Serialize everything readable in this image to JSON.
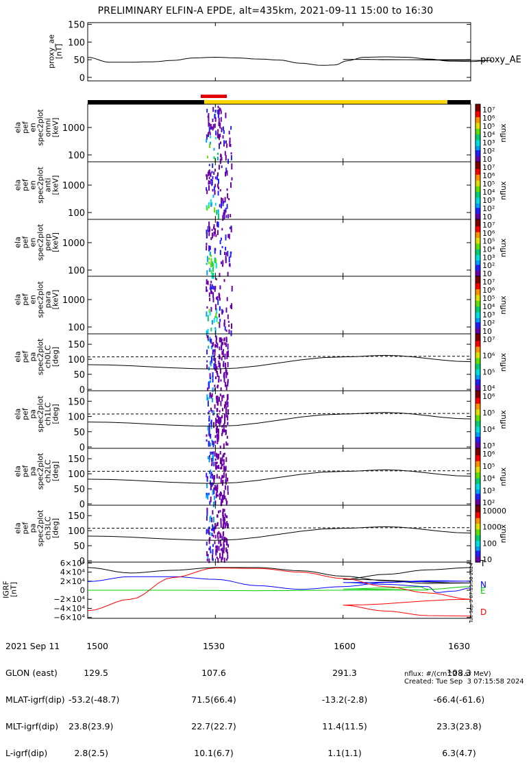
{
  "title": "PRELIMINARY ELFIN-A EPDE, alt=435km, 2021-09-11 15:00 to 16:30",
  "chart_data": [
    {
      "type": "line",
      "panel": "proxy_ae",
      "ylabel": [
        "proxy_ae",
        "[nT]"
      ],
      "yticks": [
        "150",
        "100",
        "50",
        "0"
      ],
      "ylim": [
        -10,
        155
      ],
      "series": [
        {
          "name": "proxy_AE",
          "x": [
            1500,
            1505,
            1510,
            1515,
            1520,
            1525,
            1530,
            1535,
            1540,
            1545,
            1550,
            1555,
            1558,
            1561,
            1565,
            1570,
            1575,
            1580,
            1585,
            1590,
            1595,
            1600,
            1605,
            1610,
            1615,
            1620,
            1625,
            1630
          ],
          "values": [
            57,
            43,
            43,
            44,
            48,
            55,
            57,
            55,
            52,
            49,
            40,
            34,
            35,
            47,
            57,
            58,
            57,
            52,
            46,
            45,
            48,
            51,
            51,
            50,
            50,
            50,
            50,
            50
          ]
        }
      ]
    },
    {
      "type": "heatmap",
      "panel": "energy spectrograms",
      "panels": [
        {
          "ylabel": [
            "ela",
            "pef",
            "en",
            "spec2plot",
            "omni",
            "[keV]"
          ],
          "yticks": [
            "1000",
            "100"
          ]
        },
        {
          "ylabel": [
            "ela",
            "pef",
            "en",
            "spec2plot",
            "anti",
            "[keV]"
          ],
          "yticks": [
            "1000",
            "100"
          ]
        },
        {
          "ylabel": [
            "ela",
            "pef",
            "en",
            "spec2plot",
            "perp",
            "[keV]"
          ],
          "yticks": [
            "1000",
            "100"
          ]
        },
        {
          "ylabel": [
            "ela",
            "pef",
            "en",
            "spec2plot",
            "para",
            "[keV]"
          ],
          "yticks": [
            "1000",
            "100"
          ]
        }
      ],
      "colorbar": {
        "label": "nflux",
        "range": [
          10,
          10000000
        ],
        "ticks": [
          "10",
          "10²",
          "10³",
          "10⁴",
          "10⁵",
          "10⁶",
          "10⁷"
        ]
      }
    },
    {
      "type": "heatmap",
      "panel": "pitch angle spectrograms",
      "panels": [
        {
          "ylabel": [
            "ela",
            "pef",
            "pa",
            "spec2plot",
            "ch0LC",
            "[deg]"
          ],
          "yticks": [
            "150",
            "100",
            "50",
            "0"
          ],
          "colorbar_ticks": [
            "10⁷",
            "10⁶",
            "10⁵",
            "10⁴"
          ]
        },
        {
          "ylabel": [
            "ela",
            "pef",
            "pa",
            "spec2plot",
            "ch1LC",
            "[deg]"
          ],
          "yticks": [
            "150",
            "100",
            "50",
            "0"
          ],
          "colorbar_ticks": [
            "10⁶",
            "10⁵",
            "10⁴",
            "10³"
          ]
        },
        {
          "ylabel": [
            "ela",
            "pef",
            "pa",
            "spec2plot",
            "ch2LC",
            "[deg]"
          ],
          "yticks": [
            "150",
            "100",
            "50",
            "0"
          ],
          "colorbar_ticks": [
            "10⁶",
            "10⁵",
            "10⁴",
            "10³",
            "10²"
          ]
        },
        {
          "ylabel": [
            "ela",
            "pef",
            "pa",
            "spec2plot",
            "ch3LC",
            "[deg]"
          ],
          "yticks": [
            "150",
            "100",
            "50",
            "0"
          ],
          "colorbar_ticks": [
            "10000",
            "1000",
            "100",
            "10"
          ]
        }
      ],
      "loss_cone_solid": {
        "x": [
          1500,
          1530,
          1600,
          1610,
          1630
        ],
        "values": [
          82,
          68,
          108,
          113,
          92
        ]
      },
      "anti_loss_cone_dashed": {
        "x": [
          1500,
          1630
        ],
        "values": [
          108,
          110
        ]
      },
      "colorbar_label": "nflux"
    },
    {
      "type": "line",
      "panel": "IGRF",
      "ylabel": [
        "IGRF",
        "[nT]"
      ],
      "yticks": [
        "6×10⁴",
        "4×10⁴",
        "2×10⁴",
        "0",
        "−2×10⁴",
        "−4×10⁴",
        "−6×10⁴"
      ],
      "ylim": [
        -62000,
        62000
      ],
      "series": [
        {
          "name": "T",
          "color": "#000000",
          "x": [
            1500,
            1510,
            1520,
            1530,
            1540,
            1550,
            1560,
            1570,
            1580,
            1590,
            1600,
            1610,
            1620,
            1630
          ],
          "values": [
            50000,
            38000,
            44000,
            50000,
            50000,
            43000,
            31000,
            21000,
            15000,
            16000,
            24000,
            35000,
            45000,
            50000
          ]
        },
        {
          "name": "N",
          "color": "#0000ff",
          "x": [
            1500,
            1510,
            1520,
            1530,
            1540,
            1550,
            1560,
            1570,
            1580,
            1590,
            1600,
            1610,
            1620,
            1622,
            1626,
            1630
          ],
          "values": [
            19000,
            30000,
            30000,
            24000,
            10000,
            2000,
            8000,
            17000,
            21000,
            20000,
            17000,
            13000,
            8000,
            -5000,
            -2000,
            5000
          ]
        },
        {
          "name": "E",
          "color": "#00cc00",
          "x": [
            1500,
            1520,
            1540,
            1560,
            1580,
            1600,
            1610,
            1618,
            1620,
            1630
          ],
          "values": [
            0,
            0,
            -1000,
            0,
            500,
            2500,
            5000,
            7500,
            2000,
            8000
          ]
        },
        {
          "name": "D",
          "color": "#ff0000",
          "x": [
            1500,
            1510,
            1520,
            1530,
            1540,
            1550,
            1560,
            1570,
            1580,
            1590,
            1600,
            1610,
            1620,
            1630
          ],
          "values": [
            -45000,
            -20000,
            28000,
            49000,
            48000,
            40000,
            26000,
            8000,
            -6000,
            -20000,
            -33000,
            -46000,
            -56000,
            -57000
          ]
        }
      ]
    }
  ],
  "x_ticks": [
    "1500",
    "1530",
    "1600",
    "1630"
  ],
  "ephemeris": {
    "labels": [
      "2021 Sep 11",
      "GLON (east)",
      "MLAT-igrf(dip)",
      "MLT-igrf(dip)",
      "L-igrf(dip)"
    ],
    "col_1500": [
      "1500",
      "129.5",
      "-53.2(-48.7)",
      "23.8(23.9)",
      "2.8(2.5)"
    ],
    "col_1530": [
      "1530",
      "107.6",
      "71.5(66.4)",
      "22.7(22.7)",
      "10.1(6.7)"
    ],
    "col_1600": [
      "1600",
      "291.3",
      "-13.2(-2.8)",
      "11.4(11.5)",
      "1.1(1.1)"
    ],
    "col_1630": [
      "1630",
      "108.3",
      "-66.4(-61.6)",
      "23.3(23.8)",
      "6.3(4.7)"
    ]
  },
  "footer": {
    "units": "nflux: #/(cm^2 s sr MeV)",
    "created": "Created: Tue Sep  3 07:15:58 2024",
    "vertical_stamp": "Tue Sep  3 07:15:58 2024"
  }
}
